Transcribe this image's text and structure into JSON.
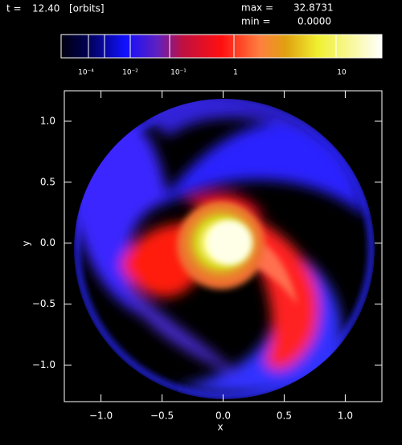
{
  "header": {
    "time_label": "t =",
    "time_value": "12.40",
    "time_unit": "[orbits]",
    "max_label": "max =",
    "max_value": "32.8731",
    "min_label": "min =",
    "min_value": "0.0000"
  },
  "colorbar": {
    "labels": [
      "10⁻⁴",
      "10⁻²",
      "10⁻¹",
      "1",
      "10"
    ]
  },
  "chart_data": {
    "type": "image",
    "xlabel": "x",
    "ylabel": "y",
    "xlim": [
      -1.3,
      1.3
    ],
    "ylim": [
      -1.3,
      1.25
    ],
    "xticks": [
      {
        "value": -1,
        "label": "−1.0"
      },
      {
        "value": -0.5,
        "label": "−0.5"
      },
      {
        "value": 0,
        "label": "0.0"
      },
      {
        "value": 0.5,
        "label": "0.5"
      },
      {
        "value": 1,
        "label": "1.0"
      }
    ],
    "yticks": [
      {
        "value": -1,
        "label": "−1.0"
      },
      {
        "value": -0.5,
        "label": "−0.5"
      },
      {
        "value": 0,
        "label": "0.0"
      },
      {
        "value": 0.5,
        "label": "0.5"
      },
      {
        "value": 1,
        "label": "1.0"
      }
    ]
  }
}
